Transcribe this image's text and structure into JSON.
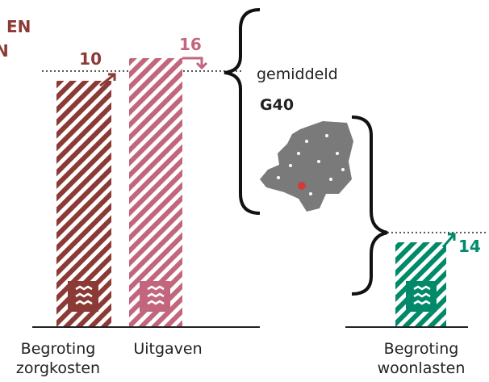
{
  "heading": [
    "EN",
    "N"
  ],
  "bars": [
    {
      "label": [
        "Begroting",
        "zorgkosten"
      ],
      "change": 10
    },
    {
      "label": [
        "Uitgaven"
      ],
      "change": 16
    },
    {
      "label": [
        "Begroting",
        "woonlasten"
      ],
      "change": 14
    }
  ],
  "average": {
    "label": "gemiddeld",
    "group": "G40"
  }
}
